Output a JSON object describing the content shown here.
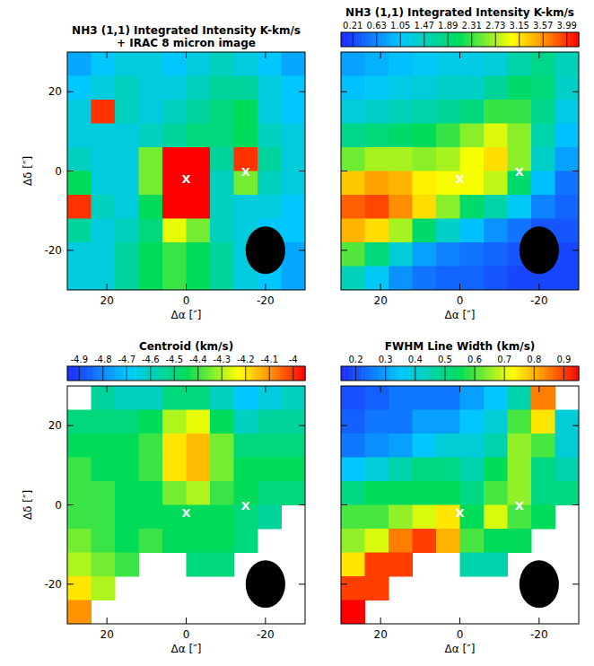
{
  "chart_data": [
    {
      "type": "heatmap",
      "title": "NH3 (1,1) Integrated Intensity K-km/s + IRAC 8 micron image",
      "x_label": "Δα [″]",
      "y_label": "Δδ [″]",
      "xlim": [
        30,
        -30
      ],
      "ylim": [
        -30,
        30
      ],
      "xticks": [
        20,
        0,
        -20
      ],
      "yticks": [
        -20,
        0,
        20
      ],
      "x": [
        27,
        21,
        15,
        9,
        3,
        -3,
        -9,
        -15,
        -21,
        -27
      ],
      "y": [
        27,
        21,
        15,
        9,
        3,
        -3,
        -9,
        -15,
        -21,
        -27
      ],
      "z": [
        [
          0.2,
          0.25,
          0.3,
          0.3,
          0.25,
          0.3,
          0.35,
          0.3,
          0.25,
          0.2
        ],
        [
          0.25,
          0.3,
          0.35,
          0.3,
          0.3,
          0.35,
          0.4,
          0.4,
          0.3,
          0.25
        ],
        [
          0.3,
          0.95,
          0.35,
          0.3,
          0.35,
          0.4,
          0.45,
          0.5,
          0.3,
          0.25
        ],
        [
          0.3,
          0.3,
          0.3,
          0.35,
          0.4,
          0.45,
          0.45,
          0.5,
          0.35,
          0.3
        ],
        [
          0.35,
          0.3,
          0.3,
          0.6,
          1,
          1,
          0.4,
          0.95,
          0.4,
          0.3
        ],
        [
          0.5,
          0.3,
          0.3,
          0.6,
          1,
          1,
          0.35,
          0.6,
          0.35,
          0.3
        ],
        [
          0.95,
          0.35,
          0.3,
          0.5,
          1,
          1,
          0.35,
          0.3,
          0.3,
          0.25
        ],
        [
          0.4,
          0.3,
          0.35,
          0.45,
          0.7,
          0.6,
          0.35,
          0.3,
          0.25,
          0.25
        ],
        [
          0.3,
          0.3,
          0.4,
          0.5,
          0.55,
          0.5,
          0.4,
          0.3,
          0.25,
          0.2
        ],
        [
          0.3,
          0.3,
          0.4,
          0.5,
          0.55,
          0.5,
          0.4,
          0.3,
          0.25,
          0.2
        ]
      ],
      "zlim": [
        0,
        1
      ],
      "markers": [
        {
          "x": 0,
          "y": -2,
          "label": "X"
        },
        {
          "x": -15,
          "y": 0,
          "label": "X"
        }
      ],
      "beam": {
        "x": -20,
        "y": -20,
        "width": 10,
        "height": 12
      }
    },
    {
      "type": "heatmap",
      "title": "NH3 (1,1) Integrated Intensity K-km/s",
      "x_label": "Δα [″]",
      "y_label": "Δδ [″]",
      "xlim": [
        30,
        -30
      ],
      "ylim": [
        -30,
        30
      ],
      "xticks": [
        20,
        0,
        -20
      ],
      "yticks": [
        -20,
        0,
        20
      ],
      "tick_labels": "x",
      "x": [
        27,
        21,
        15,
        9,
        3,
        -3,
        -9,
        -15,
        -21,
        -27
      ],
      "y": [
        27,
        21,
        15,
        9,
        3,
        -3,
        -9,
        -15,
        -21,
        -27
      ],
      "z": [
        [
          0.8,
          0.9,
          1.0,
          1.1,
          1.2,
          1.2,
          1.3,
          1.6,
          1.8,
          1.5
        ],
        [
          1.0,
          1.1,
          1.2,
          1.3,
          1.4,
          1.4,
          1.7,
          2.0,
          1.9,
          1.4
        ],
        [
          1.3,
          1.4,
          1.5,
          1.6,
          1.7,
          1.9,
          2.3,
          2.3,
          1.8,
          1.2
        ],
        [
          1.8,
          1.9,
          2.0,
          2.1,
          2.3,
          2.6,
          2.9,
          2.6,
          1.6,
          1.0
        ],
        [
          2.5,
          2.7,
          2.7,
          2.6,
          2.7,
          3.0,
          3.2,
          2.6,
          1.4,
          0.8
        ],
        [
          3.3,
          3.5,
          3.4,
          3.1,
          3.0,
          3.0,
          2.8,
          2.0,
          1.0,
          0.5
        ],
        [
          3.8,
          3.9,
          3.6,
          3.2,
          2.6,
          2.0,
          1.6,
          1.1,
          0.6,
          0.4
        ],
        [
          3.4,
          3.2,
          2.7,
          2.0,
          1.4,
          1.0,
          0.7,
          0.5,
          0.3,
          0.3
        ],
        [
          2.4,
          1.9,
          1.3,
          0.8,
          0.6,
          0.5,
          0.4,
          0.3,
          0.2,
          0.2
        ],
        [
          1.5,
          1.1,
          0.7,
          0.5,
          0.4,
          0.4,
          0.3,
          0.2,
          0.2,
          0.2
        ]
      ],
      "zlim": [
        0,
        4.2
      ],
      "zticks": [
        0.21,
        0.63,
        1.05,
        1.47,
        1.89,
        2.31,
        2.73,
        3.15,
        3.57,
        3.99
      ],
      "markers": [
        {
          "x": 0,
          "y": -2,
          "label": "X"
        },
        {
          "x": -15,
          "y": 0,
          "label": "X"
        }
      ],
      "beam": {
        "x": -20,
        "y": -20,
        "width": 10,
        "height": 12
      }
    },
    {
      "type": "heatmap",
      "title": "Centroid (km/s)",
      "x_label": "Δα [″]",
      "y_label": "Δδ [″]",
      "xlim": [
        30,
        -30
      ],
      "ylim": [
        -30,
        30
      ],
      "xticks": [
        20,
        0,
        -20
      ],
      "yticks": [
        -20,
        0,
        20
      ],
      "x": [
        27,
        21,
        15,
        9,
        3,
        -3,
        -9,
        -15,
        -21,
        -27
      ],
      "y": [
        27,
        21,
        15,
        9,
        3,
        -3,
        -9,
        -15,
        -21,
        -27
      ],
      "z": [
        [
          null,
          -4.55,
          -4.6,
          -4.6,
          -4.5,
          -4.5,
          -4.6,
          -4.7,
          -4.65,
          -4.6
        ],
        [
          -4.5,
          -4.5,
          -4.5,
          -4.45,
          -4.3,
          -4.25,
          -4.45,
          -4.6,
          -4.55,
          -4.55
        ],
        [
          -4.45,
          -4.45,
          -4.45,
          -4.4,
          -4.2,
          -4.15,
          -4.35,
          -4.5,
          -4.5,
          -4.5
        ],
        [
          -4.4,
          -4.45,
          -4.45,
          -4.4,
          -4.2,
          -4.15,
          -4.35,
          -4.45,
          -4.45,
          -4.45
        ],
        [
          -4.4,
          -4.4,
          -4.45,
          -4.45,
          -4.35,
          -4.3,
          -4.4,
          -4.45,
          -4.5,
          -4.5
        ],
        [
          -4.4,
          -4.4,
          -4.45,
          -4.45,
          -4.45,
          -4.45,
          -4.45,
          -4.5,
          -4.55,
          null
        ],
        [
          -4.35,
          -4.4,
          -4.45,
          -4.4,
          -4.45,
          -4.45,
          -4.45,
          -4.5,
          null,
          null
        ],
        [
          -4.3,
          -4.35,
          -4.4,
          null,
          null,
          -4.5,
          -4.5,
          null,
          null,
          null
        ],
        [
          -4.2,
          -4.3,
          null,
          null,
          null,
          null,
          null,
          null,
          null,
          null
        ],
        [
          -4.1,
          null,
          null,
          null,
          null,
          null,
          null,
          null,
          null,
          null
        ]
      ],
      "zlim": [
        -4.95,
        -3.95
      ],
      "zticks": [
        -4.9,
        -4.8,
        -4.7,
        -4.6,
        -4.5,
        -4.4,
        -4.3,
        -4.2,
        -4.1,
        -4
      ],
      "markers": [
        {
          "x": 0,
          "y": -2,
          "label": "X"
        },
        {
          "x": -15,
          "y": 0,
          "label": "X"
        }
      ],
      "beam": {
        "x": -20,
        "y": -20,
        "width": 10,
        "height": 12
      }
    },
    {
      "type": "heatmap",
      "title": "FWHM Line Width (km/s)",
      "x_label": "Δα [″]",
      "y_label": "Δδ [″]",
      "xlim": [
        30,
        -30
      ],
      "ylim": [
        -30,
        30
      ],
      "xticks": [
        20,
        0,
        -20
      ],
      "yticks": [
        -20,
        0,
        20
      ],
      "tick_labels": "x",
      "x": [
        27,
        21,
        15,
        9,
        3,
        -3,
        -9,
        -15,
        -21,
        -27
      ],
      "y": [
        27,
        21,
        15,
        9,
        3,
        -3,
        -9,
        -15,
        -21,
        -27
      ],
      "z": [
        [
          0.2,
          0.22,
          0.25,
          0.25,
          0.25,
          0.3,
          0.35,
          0.45,
          0.85,
          null
        ],
        [
          0.22,
          0.25,
          0.25,
          0.3,
          0.3,
          0.35,
          0.4,
          0.6,
          0.75,
          0.4
        ],
        [
          0.25,
          0.28,
          0.3,
          0.35,
          0.4,
          0.4,
          0.45,
          0.65,
          0.6,
          0.4
        ],
        [
          0.35,
          0.4,
          0.45,
          0.5,
          0.5,
          0.45,
          0.55,
          0.65,
          0.5,
          0.45
        ],
        [
          0.5,
          0.55,
          0.55,
          0.55,
          0.55,
          0.5,
          0.6,
          0.65,
          0.5,
          0.5
        ],
        [
          0.6,
          0.6,
          0.65,
          0.7,
          0.75,
          0.55,
          0.7,
          0.6,
          0.55,
          null
        ],
        [
          0.65,
          0.7,
          0.85,
          0.9,
          0.8,
          0.6,
          0.55,
          0.55,
          null,
          null
        ],
        [
          0.75,
          0.9,
          0.9,
          null,
          null,
          0.45,
          0.45,
          null,
          null,
          null
        ],
        [
          0.9,
          0.9,
          null,
          null,
          null,
          null,
          null,
          null,
          null,
          null
        ],
        [
          0.95,
          null,
          null,
          null,
          null,
          null,
          null,
          null,
          null,
          null
        ]
      ],
      "zlim": [
        0.15,
        0.95
      ],
      "zticks": [
        0.2,
        0.3,
        0.4,
        0.5,
        0.6,
        0.7,
        0.8,
        0.9
      ],
      "markers": [
        {
          "x": 0,
          "y": -2,
          "label": "X"
        },
        {
          "x": -15,
          "y": 0,
          "label": "X"
        }
      ],
      "beam": {
        "x": -20,
        "y": -20,
        "width": 10,
        "height": 12
      }
    }
  ]
}
